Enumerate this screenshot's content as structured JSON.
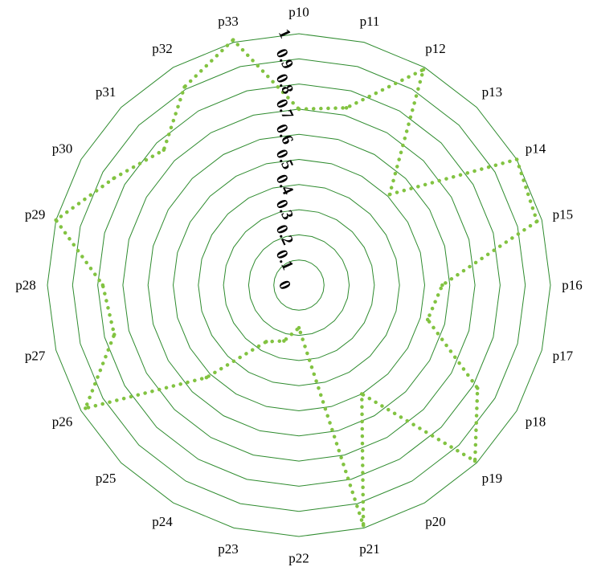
{
  "chart_data": {
    "type": "radar",
    "categories": [
      "p10",
      "p11",
      "p12",
      "p13",
      "p14",
      "p15",
      "p16",
      "p17",
      "p18",
      "p19",
      "p20",
      "p21",
      "p22",
      "p23",
      "p24",
      "p25",
      "p26",
      "p27",
      "p28",
      "p29",
      "p30",
      "p31",
      "p32",
      "p33"
    ],
    "series": [
      {
        "values": [
          0.7,
          0.73,
          0.99,
          0.51,
          1.0,
          0.98,
          0.57,
          0.53,
          0.82,
          0.99,
          0.5,
          0.99,
          0.17,
          0.23,
          0.26,
          0.52,
          0.98,
          0.76,
          0.78,
          1.0,
          0.85,
          0.76,
          0.91,
          1.01
        ],
        "color": "#82C341",
        "line_style": "dotted"
      }
    ],
    "radial_ticks": [
      "0",
      "0.1",
      "0.2",
      "0.3",
      "0.4",
      "0.5",
      "0.6",
      "0.7",
      "0.8",
      "0.9",
      "1"
    ],
    "range": [
      0,
      1
    ],
    "grid": true,
    "grid_color": "#2E8B2E",
    "grid_shape": "polygon"
  }
}
